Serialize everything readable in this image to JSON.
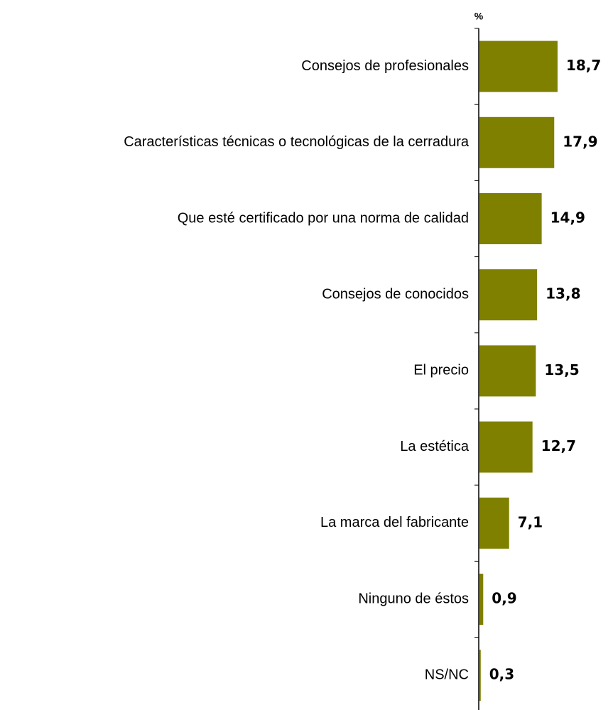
{
  "chart_data": {
    "type": "bar",
    "orientation": "horizontal",
    "axis_label": "%",
    "categories": [
      "Consejos de profesionales",
      "Características técnicas o tecnológicas de la cerradura",
      "Que esté certificado por una norma de calidad",
      "Consejos de conocidos",
      "El precio",
      "La estética",
      "La marca del fabricante",
      "Ninguno de éstos",
      "NS/NC"
    ],
    "values": [
      18.7,
      17.9,
      14.9,
      13.8,
      13.5,
      12.7,
      7.1,
      0.9,
      0.3
    ],
    "value_labels": [
      "18,7",
      "17,9",
      "14,9",
      "13,8",
      "13,5",
      "12,7",
      "7,1",
      "0,9",
      "0,3"
    ],
    "color": "#808000"
  }
}
